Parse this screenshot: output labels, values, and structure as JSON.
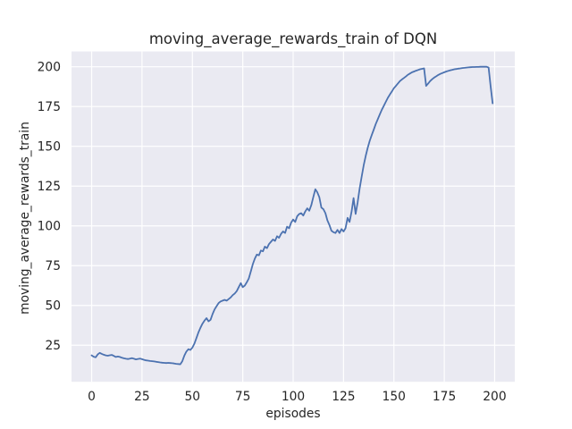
{
  "chart_data": {
    "type": "line",
    "title": "moving_average_rewards_train of DQN",
    "xlabel": "episodes",
    "ylabel": "moving_average_rewards_train",
    "xlim": [
      -10,
      210
    ],
    "ylim": [
      2,
      209.6
    ],
    "xticks": [
      0,
      25,
      50,
      75,
      100,
      125,
      150,
      175,
      200
    ],
    "yticks": [
      25,
      50,
      75,
      100,
      125,
      150,
      175,
      200
    ],
    "grid": true,
    "legend": false,
    "style": {
      "axes_bg": "#EAEAF2",
      "grid_color": "#FFFFFF",
      "line_color": "#4C72B0",
      "text_color": "#262626"
    },
    "series": [
      {
        "name": "moving_average_rewards_train",
        "x_start": 0,
        "x_step": 1,
        "values": [
          18.6,
          17.8,
          17.4,
          19.2,
          20.2,
          19.6,
          19.0,
          18.6,
          18.4,
          18.7,
          18.9,
          18.3,
          17.6,
          17.9,
          17.6,
          17.1,
          16.8,
          16.5,
          16.3,
          16.6,
          16.9,
          16.5,
          16.1,
          16.4,
          16.6,
          16.2,
          15.8,
          15.5,
          15.3,
          15.1,
          15.0,
          14.8,
          14.6,
          14.4,
          14.2,
          14.0,
          13.9,
          13.8,
          13.9,
          13.8,
          13.7,
          13.5,
          13.3,
          13.2,
          13.0,
          15.0,
          18.5,
          21.0,
          22.5,
          22.0,
          23.5,
          26.0,
          29.5,
          33.0,
          36.0,
          38.5,
          40.5,
          42.0,
          40.0,
          41.0,
          44.5,
          47.5,
          49.5,
          51.5,
          52.5,
          53.0,
          53.5,
          53.0,
          54.0,
          55.0,
          56.5,
          57.5,
          59.0,
          61.5,
          64.0,
          61.5,
          62.5,
          64.5,
          67.0,
          71.5,
          76.0,
          79.5,
          82.0,
          81.5,
          84.5,
          84.0,
          87.0,
          86.0,
          88.5,
          90.0,
          91.5,
          90.5,
          93.5,
          92.5,
          95.0,
          96.5,
          95.5,
          99.5,
          98.5,
          102.0,
          104.0,
          102.5,
          106.0,
          107.5,
          108.0,
          106.5,
          109.0,
          111.0,
          109.5,
          113.0,
          118.0,
          123.0,
          121.0,
          118.0,
          111.5,
          110.5,
          108.0,
          103.5,
          100.5,
          97.0,
          96.0,
          95.5,
          97.5,
          95.5,
          98.0,
          96.5,
          98.5,
          105.0,
          102.5,
          109.0,
          117.5,
          107.5,
          114.5,
          123.5,
          131.0,
          138.0,
          144.0,
          149.0,
          153.5,
          157.0,
          160.5,
          164.0,
          167.0,
          170.0,
          173.0,
          175.5,
          178.0,
          180.5,
          182.5,
          184.5,
          186.5,
          188.0,
          189.5,
          191.0,
          192.0,
          193.0,
          194.0,
          195.0,
          195.8,
          196.5,
          197.0,
          197.5,
          198.0,
          198.4,
          198.7,
          199.0,
          188.0,
          189.5,
          191.0,
          192.2,
          193.2,
          194.0,
          194.8,
          195.5,
          196.0,
          196.5,
          197.0,
          197.4,
          197.8,
          198.1,
          198.4,
          198.6,
          198.8,
          199.0,
          199.2,
          199.3,
          199.5,
          199.6,
          199.7,
          199.8,
          199.8,
          199.9,
          199.9,
          200.0,
          200.0,
          200.0,
          200.0,
          199.5,
          188.0,
          177.0
        ]
      }
    ]
  }
}
